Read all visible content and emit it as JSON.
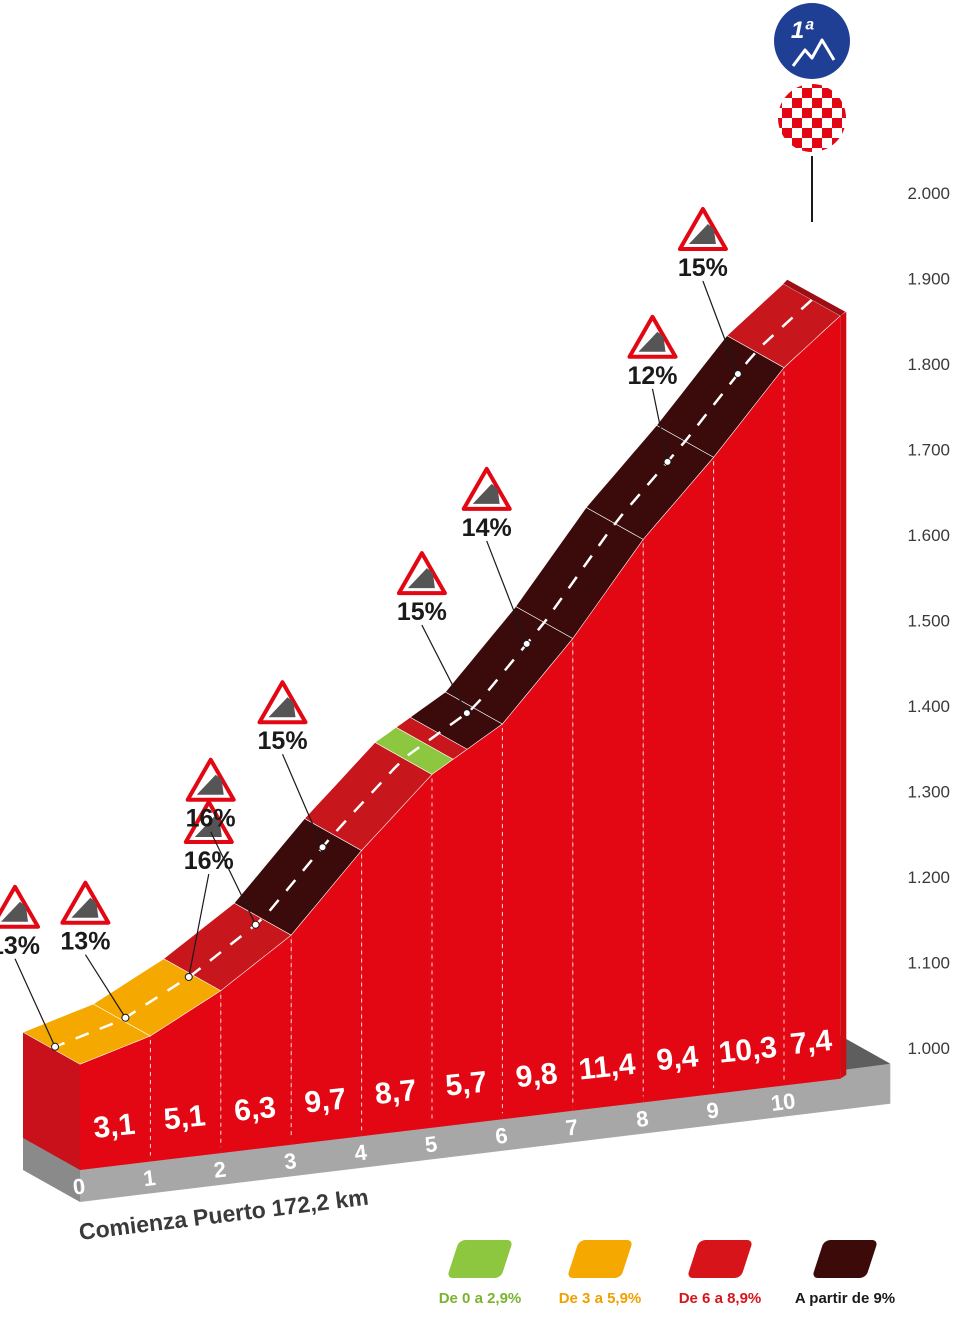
{
  "chart_data": {
    "type": "area",
    "y_unit": "m",
    "yticks": [
      "1.000",
      "1.100",
      "1.200",
      "1.300",
      "1.400",
      "1.500",
      "1.600",
      "1.700",
      "1.800",
      "1.900",
      "2.000"
    ],
    "ylim": [
      1000,
      2000
    ],
    "x_ticks": [
      "0",
      "1",
      "2",
      "3",
      "4",
      "5",
      "6",
      "7",
      "8",
      "9",
      "10"
    ],
    "segments": [
      {
        "from_km": 0,
        "to_km": 1,
        "gradient": "3,1",
        "category": 1
      },
      {
        "from_km": 1,
        "to_km": 2,
        "gradient": "5,1",
        "category": 1
      },
      {
        "from_km": 2,
        "to_km": 3,
        "gradient": "6,3",
        "category": 2
      },
      {
        "from_km": 3,
        "to_km": 4,
        "gradient": "9,7",
        "category": 3
      },
      {
        "from_km": 4,
        "to_km": 5,
        "gradient": "8,7",
        "category": 2
      },
      {
        "from_km": 5,
        "to_km": 6,
        "gradient": "5,7",
        "category": 1
      },
      {
        "from_km": 6,
        "to_km": 7,
        "gradient": "9,8",
        "category": 3
      },
      {
        "from_km": 7,
        "to_km": 8,
        "gradient": "11,4",
        "category": 3
      },
      {
        "from_km": 8,
        "to_km": 9,
        "gradient": "9,4",
        "category": 3
      },
      {
        "from_km": 9,
        "to_km": 10,
        "gradient": "10,3",
        "category": 3
      },
      {
        "from_km": 10,
        "to_km": 10.8,
        "gradient": "7,4",
        "category": 2
      }
    ],
    "sub_segments": [
      {
        "from_km": 4.95,
        "to_km": 5.3,
        "category": 0
      },
      {
        "from_km": 5.3,
        "to_km": 5.5,
        "category": 2
      }
    ],
    "altitude_profile": [
      {
        "km": 0,
        "alt": 1022
      },
      {
        "km": 1,
        "alt": 1053
      },
      {
        "km": 2,
        "alt": 1104
      },
      {
        "km": 3,
        "alt": 1167
      },
      {
        "km": 4,
        "alt": 1264
      },
      {
        "km": 5,
        "alt": 1351
      },
      {
        "km": 6,
        "alt": 1408
      },
      {
        "km": 7,
        "alt": 1506
      },
      {
        "km": 8,
        "alt": 1620
      },
      {
        "km": 9,
        "alt": 1714
      },
      {
        "km": 10,
        "alt": 1817
      },
      {
        "km": 10.8,
        "alt": 1876
      }
    ],
    "max_gradients": [
      {
        "label": "13%",
        "km": 0.05
      },
      {
        "label": "13%",
        "km": 1.05
      },
      {
        "label": "16%",
        "km": 1.95
      },
      {
        "label": "16%",
        "km": 2.9
      },
      {
        "label": "15%",
        "km": 3.85
      },
      {
        "label": "15%",
        "km": 5.9
      },
      {
        "label": "14%",
        "km": 6.75
      },
      {
        "label": "12%",
        "km": 8.75
      },
      {
        "label": "15%",
        "km": 9.75
      }
    ],
    "start_label": "Comienza Puerto 172,2 km",
    "category_badge": "1ª",
    "legend": [
      {
        "label": "De 0 a 2,9%",
        "color": "#8dc63f",
        "text_color": "#7ab32e"
      },
      {
        "label": "De 3 a 5,9%",
        "color": "#f5a800",
        "text_color": "#f0a000"
      },
      {
        "label": "De 6 a 8,9%",
        "color": "#d7141a",
        "text_color": "#d7141a"
      },
      {
        "label": "A partir de 9%",
        "color": "#3d0a0a",
        "text_color": "#1a1a1a"
      }
    ]
  }
}
